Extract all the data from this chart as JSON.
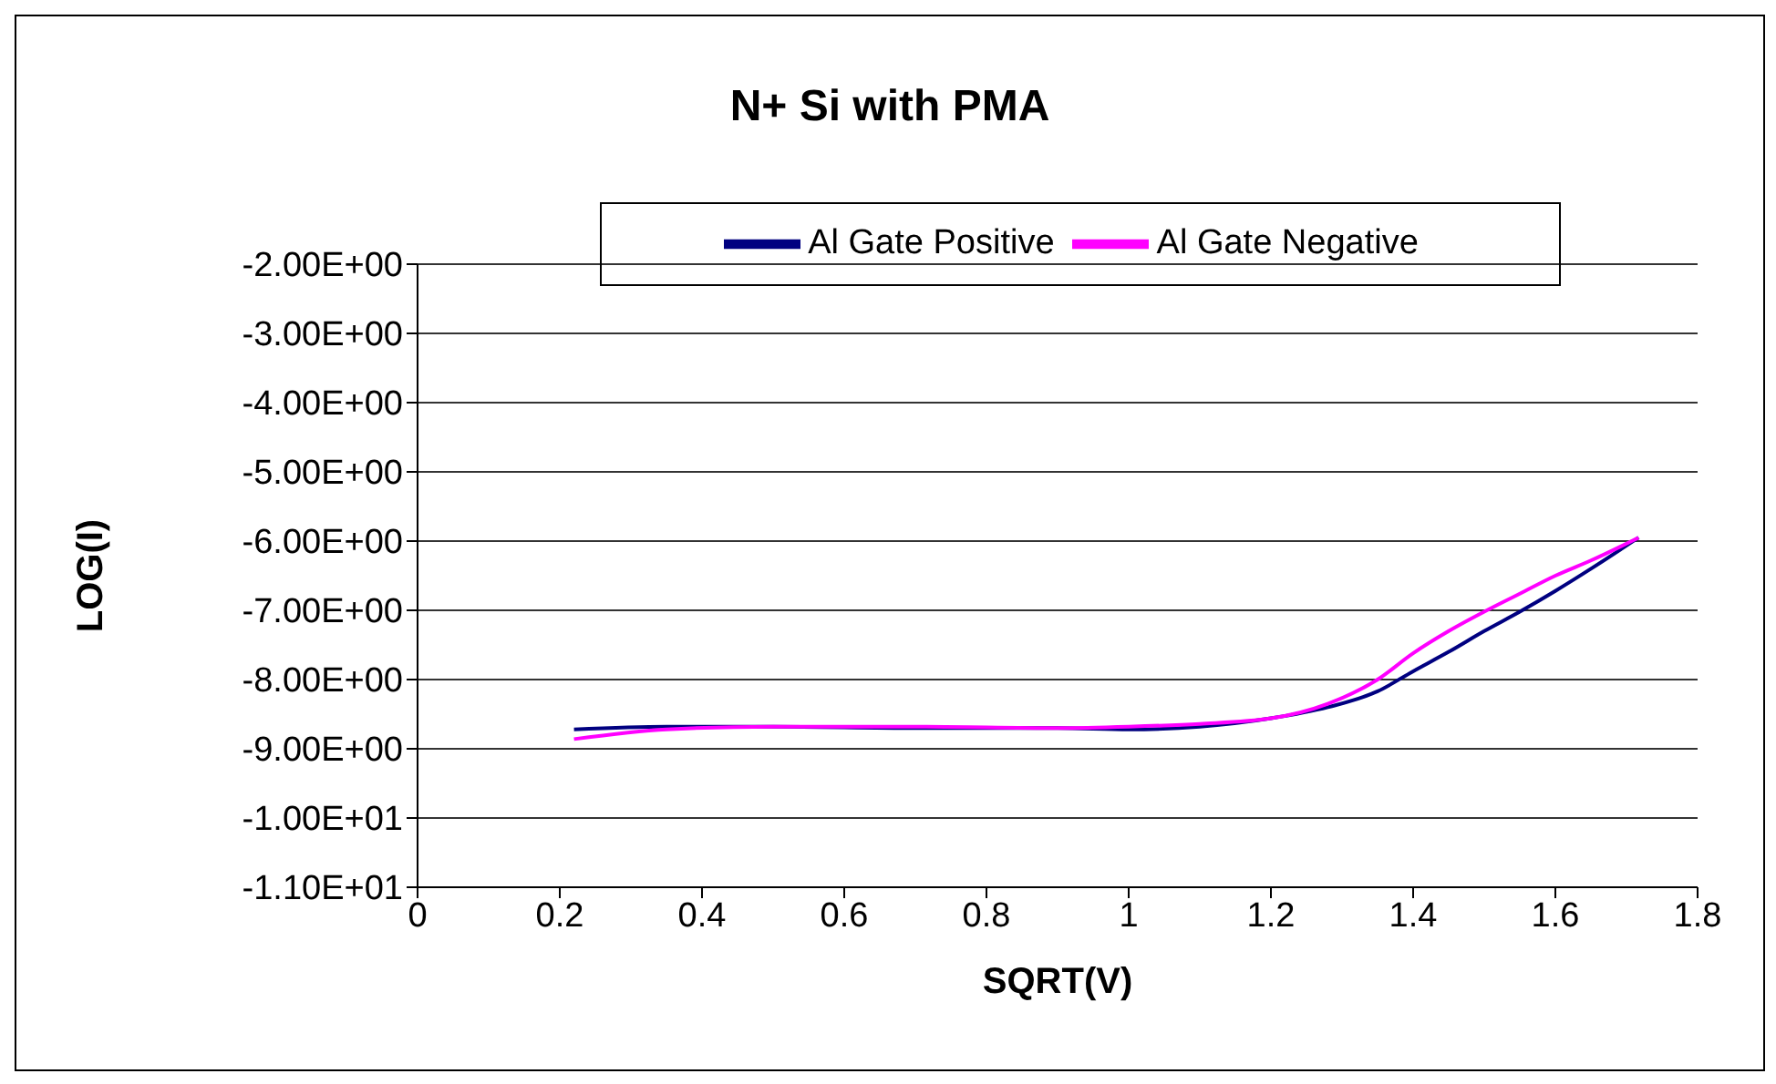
{
  "chart_data": {
    "type": "line",
    "title": "N+ Si with PMA",
    "xlabel": "SQRT(V)",
    "ylabel": "LOG(I)",
    "legend": "top",
    "grid": "y",
    "marker": "none",
    "line_style": "solid",
    "xlim": [
      0,
      1.8
    ],
    "xticks": [
      0,
      0.2,
      0.4,
      0.6,
      0.8,
      1,
      1.2,
      1.4,
      1.6,
      1.8
    ],
    "ylim": [
      -11,
      -2
    ],
    "yticks": [
      {
        "value": -11,
        "label": "-1.10E+01"
      },
      {
        "value": -10,
        "label": "-1.00E+01"
      },
      {
        "value": -9,
        "label": "-9.00E+00"
      },
      {
        "value": -8,
        "label": "-8.00E+00"
      },
      {
        "value": -7,
        "label": "-7.00E+00"
      },
      {
        "value": -6,
        "label": "-6.00E+00"
      },
      {
        "value": -5,
        "label": "-5.00E+00"
      },
      {
        "value": -4,
        "label": "-4.00E+00"
      },
      {
        "value": -3,
        "label": "-3.00E+00"
      },
      {
        "value": -2,
        "label": "-2.00E+00"
      }
    ],
    "x": [
      0.22,
      0.35,
      0.5,
      0.7,
      0.9,
      1.0,
      1.1,
      1.2,
      1.28,
      1.35,
      1.4,
      1.45,
      1.5,
      1.55,
      1.6,
      1.65,
      1.717
    ],
    "series": [
      {
        "name": "Al Gate Positive",
        "color": "#000080",
        "values": [
          -8.72,
          -8.68,
          -8.68,
          -8.7,
          -8.7,
          -8.72,
          -8.68,
          -8.56,
          -8.4,
          -8.17,
          -7.88,
          -7.6,
          -7.3,
          -7.02,
          -6.72,
          -6.4,
          -5.95
        ]
      },
      {
        "name": "Al Gate Negative",
        "color": "#ff00ff",
        "values": [
          -8.86,
          -8.72,
          -8.68,
          -8.68,
          -8.7,
          -8.68,
          -8.64,
          -8.56,
          -8.35,
          -8.0,
          -7.62,
          -7.3,
          -7.02,
          -6.76,
          -6.5,
          -6.28,
          -5.95
        ]
      }
    ]
  }
}
